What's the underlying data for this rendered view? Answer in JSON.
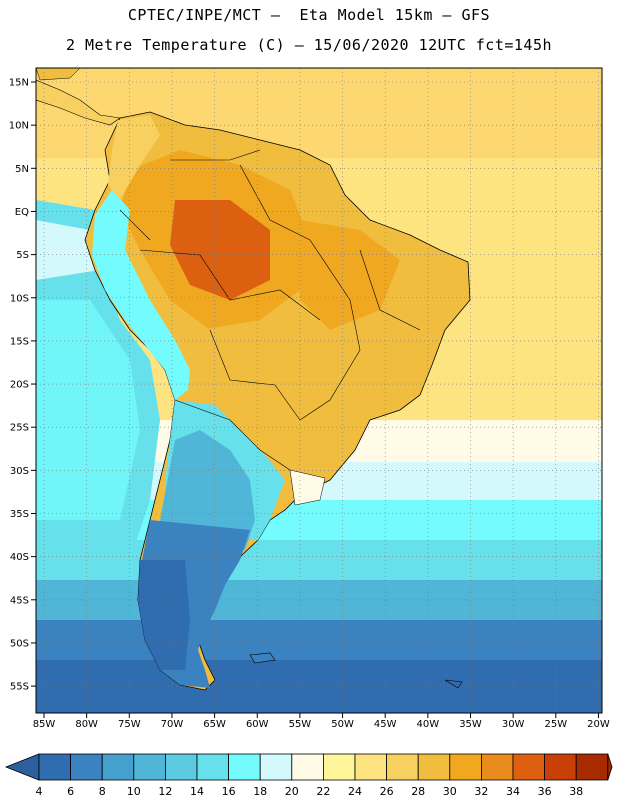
{
  "title": {
    "line1": "CPTEC/INPE/MCT –  Eta Model 15km – GFS",
    "line2": "2 Metre Temperature (C) – 15/06/2020 12UTC fct=145h"
  },
  "map": {
    "lat_labels": [
      "15N",
      "10N",
      "5N",
      "EQ",
      "5S",
      "10S",
      "15S",
      "20S",
      "25S",
      "30S",
      "35S",
      "40S",
      "45S",
      "50S",
      "55S"
    ],
    "lon_labels": [
      "85W",
      "80W",
      "75W",
      "70W",
      "65W",
      "60W",
      "55W",
      "50W",
      "45W",
      "40W",
      "35W",
      "30W",
      "25W",
      "20W"
    ],
    "colorbar": {
      "values": [
        "4",
        "6",
        "8",
        "10",
        "12",
        "14",
        "16",
        "18",
        "20",
        "22",
        "24",
        "26",
        "28",
        "30",
        "32",
        "34",
        "36",
        "38"
      ],
      "colors": [
        "#2f6db0",
        "#3a82c0",
        "#45a0cd",
        "#50b6d8",
        "#5ccae0",
        "#66e0ea",
        "#73fbfd",
        "#d3f9fc",
        "#fffbe6",
        "#fff59b",
        "#fde481",
        "#f8d060",
        "#f0bd3f",
        "#f0a820",
        "#ea8b1e",
        "#dd6010",
        "#c84005",
        "#a82a00"
      ],
      "low_color": "#2c5f9e",
      "high_color": "#a02800"
    }
  }
}
